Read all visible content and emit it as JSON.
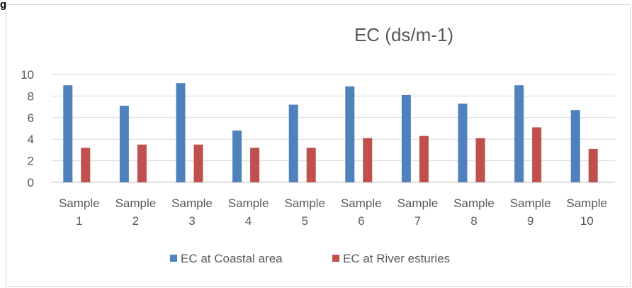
{
  "corner_mark": "g",
  "chart_data": {
    "type": "bar",
    "title": "EC (ds/m-1)",
    "xlabel": "",
    "ylabel": "",
    "ylim": [
      0,
      10
    ],
    "yticks": [
      0,
      2,
      4,
      6,
      8,
      10
    ],
    "grid": true,
    "legend_position": "bottom",
    "categories": [
      [
        "Sample",
        "1"
      ],
      [
        "Sample",
        "2"
      ],
      [
        "Sample",
        "3"
      ],
      [
        "Sample",
        "4"
      ],
      [
        "Sample",
        "5"
      ],
      [
        "Sample",
        "6"
      ],
      [
        "Sample",
        "7"
      ],
      [
        "Sample",
        "8"
      ],
      [
        "Sample",
        "9"
      ],
      [
        "Sample",
        "10"
      ]
    ],
    "series": [
      {
        "name": "EC at Coastal area",
        "color": "#4f81bd",
        "values": [
          9.0,
          7.1,
          9.2,
          4.8,
          7.2,
          8.9,
          8.1,
          7.3,
          9.0,
          6.7
        ]
      },
      {
        "name": "EC at River esturies",
        "color": "#c0504d",
        "values": [
          3.2,
          3.5,
          3.5,
          3.2,
          3.2,
          4.1,
          4.3,
          4.1,
          5.1,
          3.1
        ]
      }
    ]
  }
}
